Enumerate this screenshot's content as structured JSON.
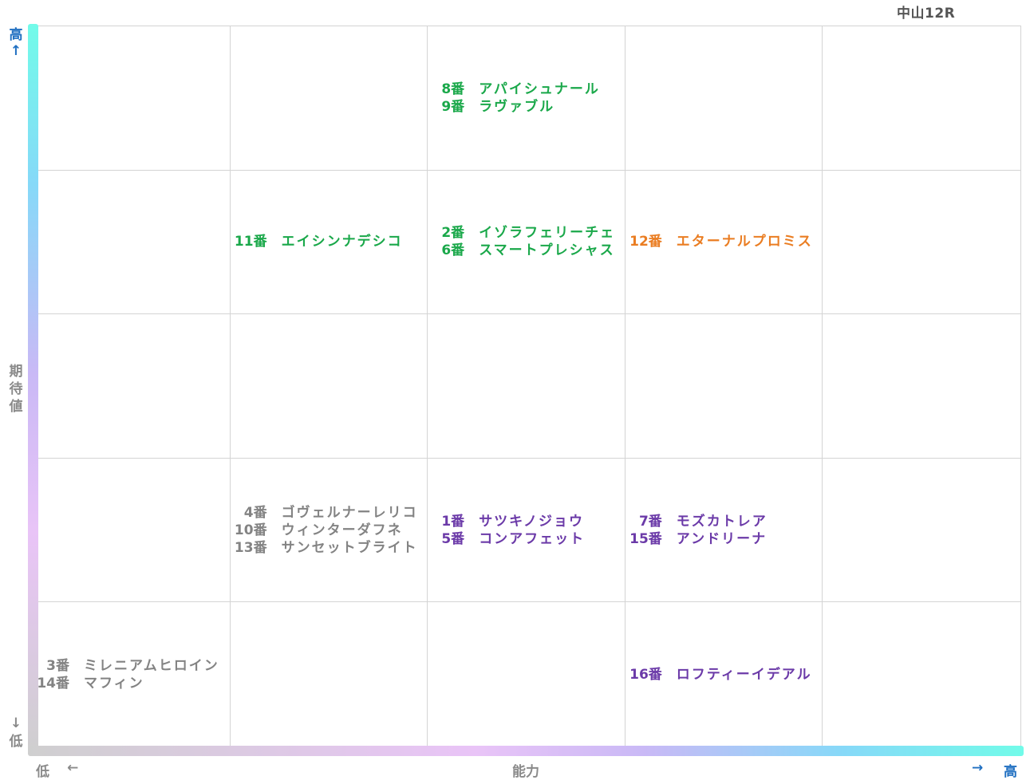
{
  "race_label": "中山12R",
  "axes": {
    "x_label": "能力",
    "y_label": "期待値",
    "low": "低",
    "high": "高",
    "arrow_left": "←",
    "arrow_right": "→",
    "arrow_up": "↑",
    "arrow_down": "↓"
  },
  "colors": {
    "green": "#1aa84a",
    "orange": "#ea7d22",
    "purple": "#6b3aa8",
    "grey": "#838383",
    "axis_blue": "#1f6fc1"
  },
  "chart_data": {
    "type": "table",
    "grid": {
      "columns": 5,
      "rows": 5
    },
    "x_axis": {
      "label": "能力",
      "low": "低",
      "high": "高"
    },
    "y_axis": {
      "label": "期待値",
      "low": "低",
      "high": "高"
    },
    "cells": [
      {
        "col": 3,
        "row": 5,
        "color": "green",
        "entries": [
          {
            "number": "8番",
            "name": "アパイシュナール"
          },
          {
            "number": "9番",
            "name": "ラヴァブル"
          }
        ]
      },
      {
        "col": 2,
        "row": 4,
        "color": "green",
        "entries": [
          {
            "number": "11番",
            "name": "エイシンナデシコ"
          }
        ]
      },
      {
        "col": 3,
        "row": 4,
        "color": "green",
        "entries": [
          {
            "number": "2番",
            "name": "イゾラフェリーチェ"
          },
          {
            "number": "6番",
            "name": "スマートプレシャス"
          }
        ]
      },
      {
        "col": 4,
        "row": 4,
        "color": "orange",
        "entries": [
          {
            "number": "12番",
            "name": "エターナルプロミス"
          }
        ]
      },
      {
        "col": 2,
        "row": 2,
        "color": "grey",
        "entries": [
          {
            "number": "4番",
            "name": "ゴヴェルナーレリコ"
          },
          {
            "number": "10番",
            "name": "ウィンターダフネ"
          },
          {
            "number": "13番",
            "name": "サンセットブライト"
          }
        ]
      },
      {
        "col": 3,
        "row": 2,
        "color": "purple",
        "entries": [
          {
            "number": "1番",
            "name": "サツキノジョウ"
          },
          {
            "number": "5番",
            "name": "コンアフェット"
          }
        ]
      },
      {
        "col": 4,
        "row": 2,
        "color": "purple",
        "entries": [
          {
            "number": "7番",
            "name": "モズカトレア"
          },
          {
            "number": "15番",
            "name": "アンドリーナ"
          }
        ]
      },
      {
        "col": 1,
        "row": 1,
        "color": "grey",
        "entries": [
          {
            "number": "3番",
            "name": "ミレニアムヒロイン"
          },
          {
            "number": "14番",
            "name": "マフィン"
          }
        ]
      },
      {
        "col": 4,
        "row": 1,
        "color": "purple",
        "entries": [
          {
            "number": "16番",
            "name": "ロフティーイデアル"
          }
        ]
      }
    ]
  }
}
